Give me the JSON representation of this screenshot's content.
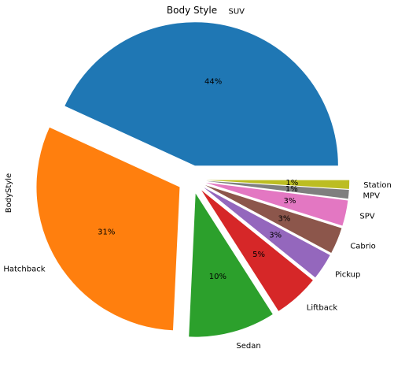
{
  "chart_data": {
    "type": "pie",
    "title": "Body Style",
    "ylabel": "BodyStyle",
    "start_angle_deg": 0,
    "direction": "counterclockwise",
    "slices": [
      {
        "label": "SUV",
        "value": 43.6,
        "pct_label": "44%",
        "color": "#1f77b4",
        "explode": 0.1
      },
      {
        "label": "Hatchback",
        "value": 31.4,
        "pct_label": "31%",
        "color": "#ff7f0e",
        "explode": 0.1
      },
      {
        "label": "Sedan",
        "value": 9.9,
        "pct_label": "10%",
        "color": "#2ca02c",
        "explode": 0.1
      },
      {
        "label": "Liftback",
        "value": 5.2,
        "pct_label": "5%",
        "color": "#d62728",
        "explode": 0.1
      },
      {
        "label": "Pickup",
        "value": 3.0,
        "pct_label": "3%",
        "color": "#9467bd",
        "explode": 0.1
      },
      {
        "label": "Cabrio",
        "value": 3.0,
        "pct_label": "3%",
        "color": "#8c564b",
        "explode": 0.1
      },
      {
        "label": "SPV",
        "value": 2.9,
        "pct_label": "3%",
        "color": "#e377c2",
        "explode": 0.1
      },
      {
        "label": "MPV",
        "value": 1.0,
        "pct_label": "1%",
        "color": "#7f7f7f",
        "explode": 0.1
      },
      {
        "label": "Station",
        "value": 1.0,
        "pct_label": "1%",
        "color": "#bcbd22",
        "explode": 0.1
      }
    ]
  }
}
